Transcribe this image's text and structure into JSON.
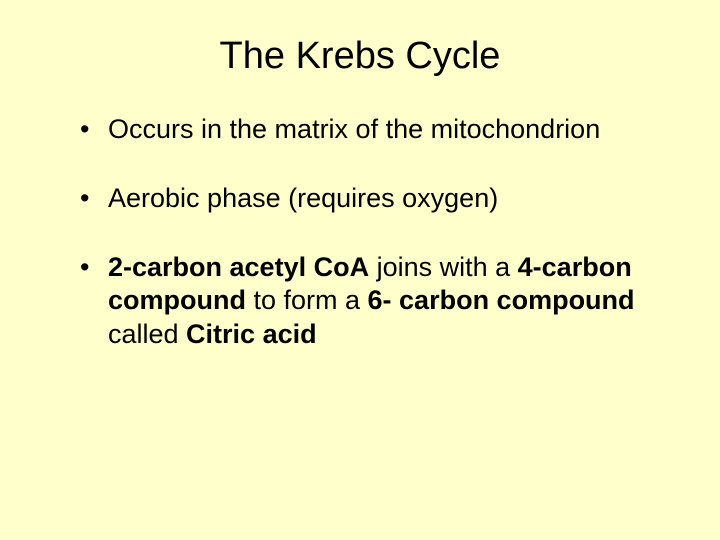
{
  "slide": {
    "title": "The Krebs Cycle",
    "background_color": "#ffffcc",
    "text_color": "#000000",
    "title_fontsize": 38,
    "body_fontsize": 27,
    "bullets": [
      {
        "segments": [
          {
            "text": "Occurs in the matrix of the mitochondrion",
            "bold": false
          }
        ]
      },
      {
        "segments": [
          {
            "text": "Aerobic phase (requires oxygen)",
            "bold": false
          }
        ]
      },
      {
        "segments": [
          {
            "text": "2-carbon acetyl CoA",
            "bold": true
          },
          {
            "text": " joins with a ",
            "bold": false
          },
          {
            "text": "4-carbon compound",
            "bold": true
          },
          {
            "text": " to form a ",
            "bold": false
          },
          {
            "text": "6- carbon compound",
            "bold": true
          },
          {
            "text": " called ",
            "bold": false
          },
          {
            "text": "Citric acid",
            "bold": true
          }
        ]
      }
    ]
  }
}
